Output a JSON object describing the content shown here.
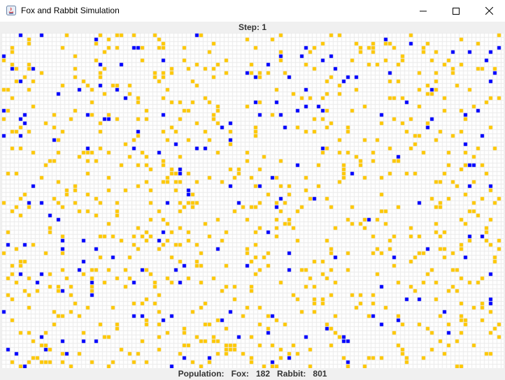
{
  "window": {
    "title": "Fox and Rabbit Simulation",
    "controls": [
      "minimize-icon",
      "maximize-icon",
      "close-icon"
    ]
  },
  "step": {
    "label": "Step: 1"
  },
  "status": {
    "prefix": "Population:",
    "fox_label": "Fox:",
    "fox_count": "182",
    "rabbit_label": "Rabbit:",
    "rabbit_count": "801"
  },
  "grid": {
    "background": "#ffffff",
    "gridline_color": "#ebebeb",
    "fox_color": "#0000ff",
    "rabbit_color": "#ffc800",
    "fox_count": 182,
    "rabbit_count": 801
  }
}
